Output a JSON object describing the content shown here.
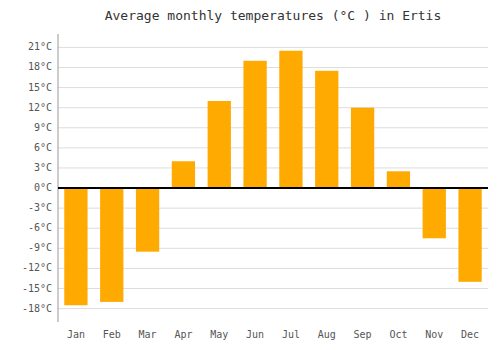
{
  "chart_data": {
    "type": "bar",
    "title": "Average monthly temperatures (°C ) in Ertis",
    "categories": [
      "Jan",
      "Feb",
      "Mar",
      "Apr",
      "May",
      "Jun",
      "Jul",
      "Aug",
      "Sep",
      "Oct",
      "Nov",
      "Dec"
    ],
    "values": [
      -17.5,
      -17.0,
      -9.5,
      4.0,
      13.0,
      19.0,
      20.5,
      17.5,
      12.0,
      2.5,
      -7.5,
      -14.0
    ],
    "color": "#FFAA00",
    "ylim": [
      -20,
      23
    ],
    "yticks": [
      {
        "value": -18,
        "label": "-18°C"
      },
      {
        "value": -15,
        "label": "-15°C"
      },
      {
        "value": -12,
        "label": "-12°C"
      },
      {
        "value": -9,
        "label": "-9°C"
      },
      {
        "value": -6,
        "label": "-6°C"
      },
      {
        "value": -3,
        "label": "-3°C"
      },
      {
        "value": 0,
        "label": "0°C"
      },
      {
        "value": 3,
        "label": "3°C"
      },
      {
        "value": 6,
        "label": "6°C"
      },
      {
        "value": 9,
        "label": "9°C"
      },
      {
        "value": 12,
        "label": "12°C"
      },
      {
        "value": 15,
        "label": "15°C"
      },
      {
        "value": 18,
        "label": "18°C"
      },
      {
        "value": 21,
        "label": "21°C"
      }
    ],
    "grid": true
  }
}
